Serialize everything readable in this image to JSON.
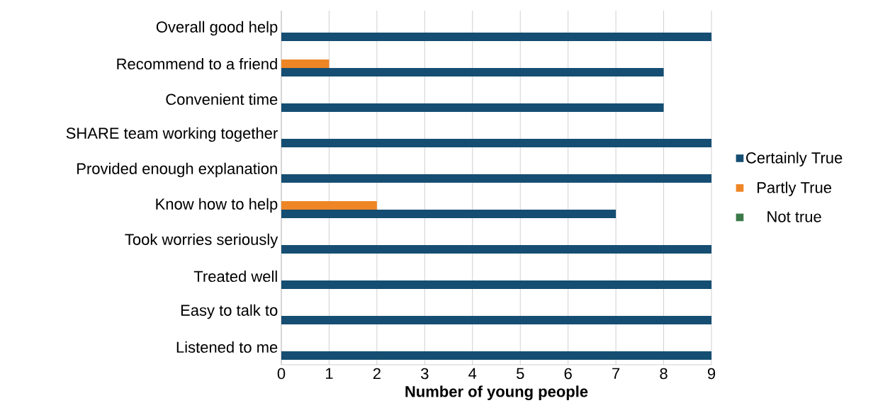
{
  "chart_data": {
    "type": "bar",
    "orientation": "horizontal",
    "xlabel": "Number of young people",
    "categories": [
      "Overall good help",
      "Recommend to a friend",
      "Convenient time",
      "SHARE team working together",
      "Provided enough explanation",
      "Know how to help",
      "Took worries seriously",
      "Treated well",
      "Easy to talk to",
      "Listened to me"
    ],
    "series": [
      {
        "name": "Certainly True",
        "color": "#154e72",
        "values": [
          9,
          8,
          8,
          9,
          9,
          7,
          9,
          9,
          9,
          9
        ]
      },
      {
        "name": "Partly True",
        "color": "#ee8626",
        "values": [
          0,
          1,
          0,
          0,
          0,
          2,
          0,
          0,
          0,
          0
        ]
      },
      {
        "name": "Not true",
        "color": "#3b7a48",
        "values": [
          0,
          0,
          0,
          0,
          0,
          0,
          0,
          0,
          0,
          0
        ]
      }
    ],
    "xlim": [
      0,
      9
    ],
    "xticks": [
      0,
      1,
      2,
      3,
      4,
      5,
      6,
      7,
      8,
      9
    ],
    "grid": "x",
    "legend": "right"
  }
}
